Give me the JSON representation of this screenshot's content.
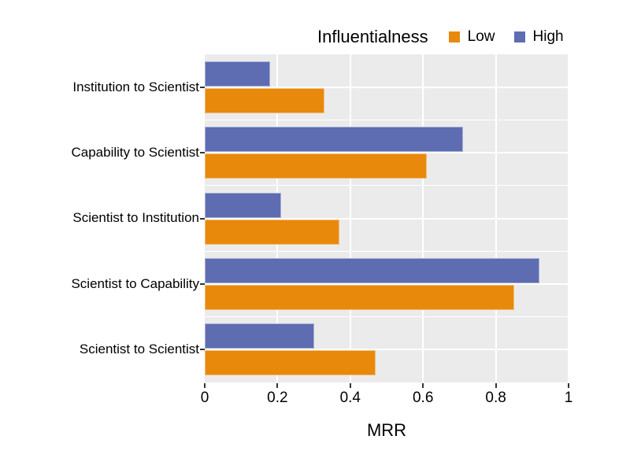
{
  "chart_data": {
    "type": "bar",
    "orientation": "horizontal",
    "title": "",
    "legend_title": "Influentialness",
    "legend_position": "top",
    "xlabel": "MRR",
    "ylabel": "",
    "xlim": [
      0,
      1
    ],
    "xticks": [
      0,
      0.2,
      0.4,
      0.6,
      0.8,
      1
    ],
    "grid": true,
    "categories": [
      "Institution to Scientist",
      "Capability to Scientist",
      "Scientist to Institution",
      "Scientist to Capability",
      "Scientist to Scientist"
    ],
    "series": [
      {
        "name": "Low",
        "color": "#E8890C",
        "values": [
          0.33,
          0.61,
          0.37,
          0.85,
          0.47
        ]
      },
      {
        "name": "High",
        "color": "#5E6CB2",
        "values": [
          0.18,
          0.71,
          0.21,
          0.92,
          0.3
        ]
      }
    ],
    "bar_order_within_group_top_to_bottom": [
      "High",
      "Low"
    ],
    "panel_background": "#EBEBEB",
    "gridline_color": "#FFFFFF",
    "tick_color": "#333333",
    "text_color": "#000000"
  }
}
